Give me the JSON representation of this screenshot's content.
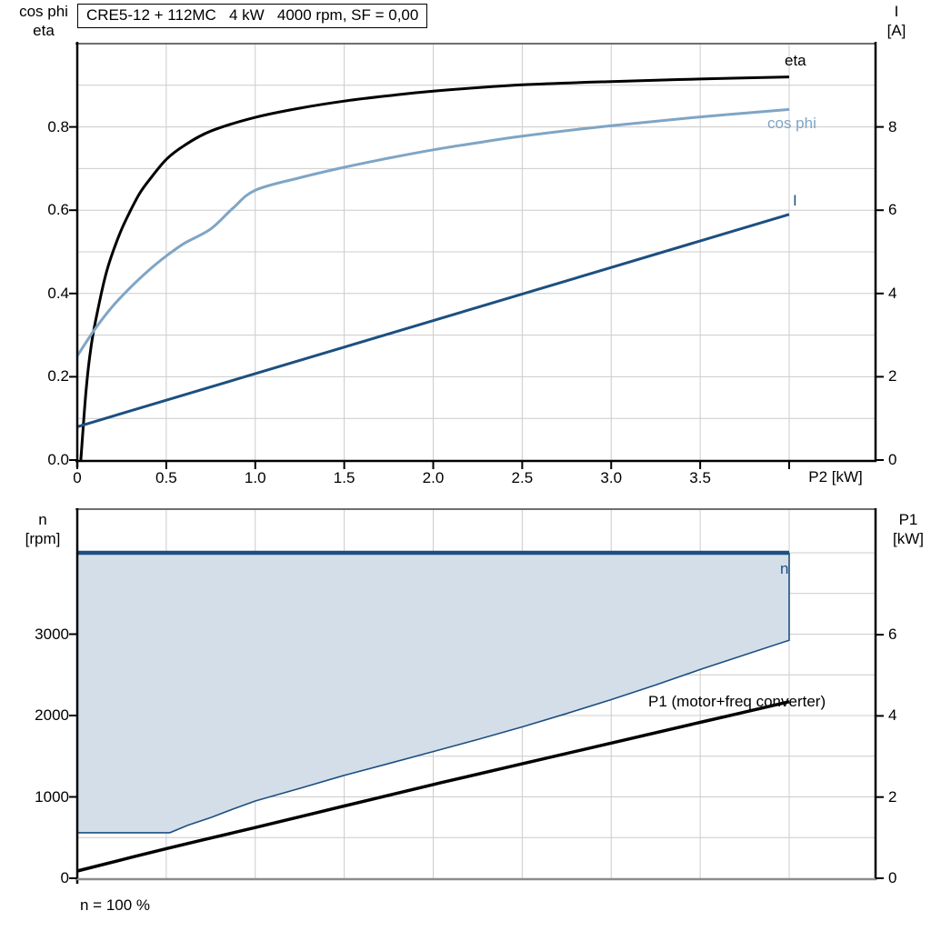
{
  "header": {
    "title": "CRE5-12 + 112MC   4 kW   4000 rpm, SF = 0,00"
  },
  "colors": {
    "curve_black": "#000000",
    "curve_dark_blue": "#1C4F80",
    "curve_light_blue": "#7FA5C5",
    "area_fill": "#D3DEE9",
    "gridline": "#CCCCCC",
    "frame_gray": "#6E6E6E",
    "bottom_axis_gray": "#8C8C8C"
  },
  "top_chart": {
    "left_axis_title": [
      "cos phi",
      "eta"
    ],
    "right_axis_title": [
      "I",
      "[A]"
    ],
    "x_axis_title": "P2 [kW]",
    "left_tick_labels": [
      "0.0",
      "0.2",
      "0.4",
      "0.6",
      "0.8"
    ],
    "left_tick_values": [
      0,
      0.2,
      0.4,
      0.6,
      0.8
    ],
    "right_tick_labels": [
      "0",
      "2",
      "4",
      "6",
      "8"
    ],
    "right_tick_values": [
      0,
      2,
      4,
      6,
      8
    ],
    "x_tick_labels": [
      "0",
      "0.5",
      "1.0",
      "1.5",
      "2.0",
      "2.5",
      "3.0",
      "3.5"
    ],
    "curve_labels": {
      "eta": "eta",
      "cos_phi": "cos phi",
      "current": "I"
    }
  },
  "bottom_chart": {
    "left_axis_title": [
      "n",
      "[rpm]"
    ],
    "right_axis_title": [
      "P1",
      "[kW]"
    ],
    "left_tick_labels": [
      "0",
      "1000",
      "2000",
      "3000"
    ],
    "left_tick_values": [
      0,
      1000,
      2000,
      3000
    ],
    "right_tick_labels": [
      "0",
      "2",
      "4",
      "6"
    ],
    "right_tick_values": [
      0,
      2,
      4,
      6
    ],
    "curve_labels": {
      "n": "n",
      "p1": "P1 (motor+freq converter)"
    },
    "footnote": "n = 100 %"
  },
  "chart_data": [
    {
      "type": "line",
      "title": "CRE5-12 + 112MC   4 kW   4000 rpm, SF = 0,00",
      "xlabel": "P2 [kW]",
      "x_range": [
        0,
        4.49
      ],
      "left_axis": {
        "label": "cos phi / eta",
        "range": [
          0,
          1.0
        ],
        "grid_step": 0.1,
        "tick_step": 0.2
      },
      "right_axis": {
        "label": "I [A]",
        "range": [
          0,
          10
        ],
        "tick_step": 2
      },
      "x_grid_step": 0.5,
      "grid": true,
      "legend_position": "inline-right",
      "series": [
        {
          "name": "eta",
          "axis": "left",
          "smooth": true,
          "x": [
            0.02,
            0.05,
            0.08,
            0.12,
            0.16,
            0.2,
            0.25,
            0.3,
            0.35,
            0.4,
            0.5,
            0.6,
            0.75,
            1.0,
            1.25,
            1.5,
            1.75,
            2.0,
            2.5,
            3.0,
            3.5,
            4.0
          ],
          "y": [
            0.0,
            0.17,
            0.28,
            0.37,
            0.445,
            0.5,
            0.555,
            0.6,
            0.64,
            0.67,
            0.722,
            0.755,
            0.79,
            0.823,
            0.845,
            0.862,
            0.875,
            0.886,
            0.901,
            0.909,
            0.915,
            0.92
          ]
        },
        {
          "name": "cos phi",
          "axis": "left",
          "smooth": true,
          "x": [
            0,
            0.1,
            0.2,
            0.3,
            0.4,
            0.5,
            0.6,
            0.75,
            0.875,
            1.0,
            1.25,
            1.5,
            1.75,
            2.0,
            2.25,
            2.5,
            3.0,
            3.5,
            4.0
          ],
          "y": [
            0.25,
            0.315,
            0.37,
            0.415,
            0.455,
            0.49,
            0.52,
            0.555,
            0.605,
            0.648,
            0.678,
            0.703,
            0.725,
            0.745,
            0.762,
            0.778,
            0.803,
            0.824,
            0.842
          ]
        },
        {
          "name": "I",
          "axis": "right",
          "smooth": false,
          "x": [
            0,
            4.0
          ],
          "y": [
            0.8,
            5.9
          ]
        }
      ]
    },
    {
      "type": "line+area",
      "x_range": [
        0,
        4.49
      ],
      "left_axis": {
        "label": "n [rpm]",
        "range": [
          0,
          4500
        ],
        "grid_step": 500,
        "tick_step": 1000
      },
      "right_axis": {
        "label": "P1 [kW]",
        "range": [
          0,
          9
        ],
        "grid_step": 1,
        "tick_step": 2
      },
      "x_grid_step": 0.5,
      "grid": true,
      "area": {
        "name": "speed operating range",
        "upper_rpm": 4000,
        "lower_x": [
          0,
          0.52,
          0.62,
          0.75,
          0.875,
          1.0,
          1.25,
          1.5,
          1.75,
          2.0,
          2.25,
          2.5,
          2.75,
          3.0,
          3.25,
          3.5,
          3.75,
          4.0
        ],
        "lower_rpm": [
          560,
          560,
          650,
          745,
          850,
          950,
          1105,
          1265,
          1410,
          1557,
          1705,
          1860,
          2025,
          2195,
          2375,
          2565,
          2745,
          2925
        ]
      },
      "series": [
        {
          "name": "n",
          "axis": "left",
          "smooth": false,
          "x": [
            0,
            4.0
          ],
          "y": [
            4000,
            4000
          ]
        },
        {
          "name": "P1 (motor+freq converter)",
          "axis": "right",
          "smooth": true,
          "x": [
            0,
            0.5,
            1.0,
            1.5,
            2.0,
            2.5,
            3.0,
            3.5,
            4.0
          ],
          "y": [
            0.18,
            0.73,
            1.25,
            1.78,
            2.31,
            2.82,
            3.33,
            3.84,
            4.35
          ]
        }
      ],
      "annotation": "n = 100 %"
    }
  ]
}
